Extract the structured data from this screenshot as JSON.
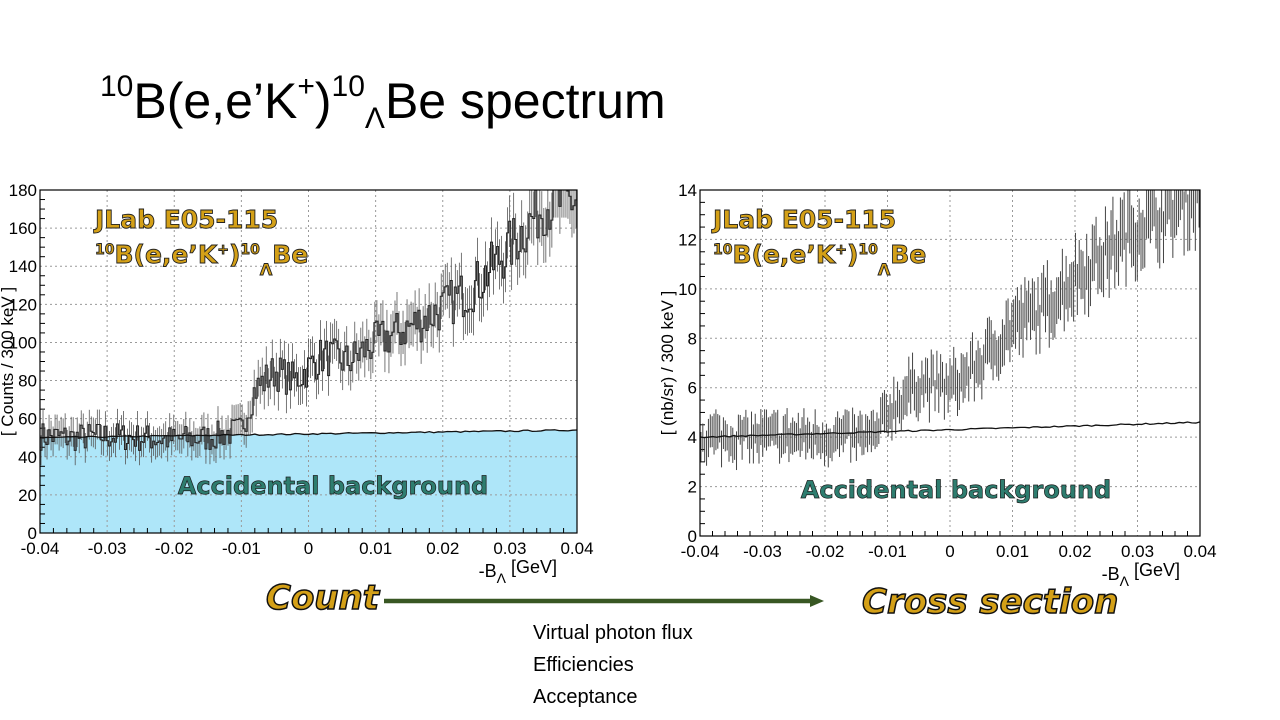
{
  "slide": {
    "title_parts": {
      "a_mass": "10",
      "a_text": "B(e,e’K",
      "plus": "+",
      "close": ")",
      "b_mass": "10",
      "hyper": "Λ",
      "b_text": "Be spectrum"
    },
    "caption_left": "Count",
    "caption_right": "Cross section",
    "notes": [
      "Virtual photon flux",
      "Efficiencies",
      "Acceptance"
    ],
    "arrow_color": "#385723"
  },
  "chart_data": [
    {
      "type": "line",
      "ylabel": "[ Counts / 300 keV ]",
      "xlabel_main": "-B",
      "xlabel_sub": "Λ",
      "xlabel_unit": "[GeV]",
      "xlim": [
        -0.04,
        0.04
      ],
      "ylim": [
        0,
        180
      ],
      "x_ticks": [
        "-0.04",
        "-0.03",
        "-0.02",
        "-0.01",
        "0",
        "0.01",
        "0.02",
        "0.03",
        "0.04"
      ],
      "y_ticks": [
        "0",
        "20",
        "40",
        "60",
        "80",
        "100",
        "120",
        "140",
        "160",
        "180"
      ],
      "grid": true,
      "legend_line1": "JLab E05-115",
      "legend_line2": {
        "mass_a": "10",
        "text_a": "B(e,e’K",
        "plus": "+",
        "text_b": ")",
        "mass_b": "10",
        "hyper": "Λ",
        "text_c": "Be"
      },
      "annotation": "Accidental background",
      "colors": {
        "fill": "#aee6f9",
        "data": "#333333",
        "text": "#d4a017",
        "annotation": "#2e7d6f"
      },
      "series": [
        {
          "kind": "histogram",
          "x_range": [
            -0.04,
            0.04
          ],
          "knots": [
            [
              -0.04,
              51
            ],
            [
              -0.035,
              50
            ],
            [
              -0.03,
              51
            ],
            [
              -0.025,
              50
            ],
            [
              -0.02,
              49
            ],
            [
              -0.015,
              50
            ],
            [
              -0.01,
              54
            ],
            [
              -0.008,
              75
            ],
            [
              -0.005,
              85
            ],
            [
              -0.002,
              80
            ],
            [
              0.002,
              93
            ],
            [
              0.006,
              90
            ],
            [
              0.01,
              100
            ],
            [
              0.015,
              108
            ],
            [
              0.02,
              118
            ],
            [
              0.025,
              130
            ],
            [
              0.03,
              150
            ],
            [
              0.035,
              172
            ],
            [
              0.04,
              175
            ]
          ]
        },
        {
          "kind": "background",
          "x": [
            -0.04,
            0.04
          ],
          "y": [
            50,
            54
          ]
        }
      ]
    },
    {
      "type": "scatter",
      "ylabel": "[ (nb/sr) / 300 keV ]",
      "xlabel_main": "-B",
      "xlabel_sub": "Λ",
      "xlabel_unit": "[GeV]",
      "xlim": [
        -0.04,
        0.04
      ],
      "ylim": [
        0,
        14
      ],
      "x_ticks": [
        "-0.04",
        "-0.03",
        "-0.02",
        "-0.01",
        "0",
        "0.01",
        "0.02",
        "0.03",
        "0.04"
      ],
      "y_ticks": [
        "0",
        "2",
        "4",
        "6",
        "8",
        "10",
        "12",
        "14"
      ],
      "grid": true,
      "legend_line1": "JLab E05-115",
      "legend_line2": {
        "mass_a": "10",
        "text_a": "B(e,e’K",
        "plus": "+",
        "text_b": ")",
        "mass_b": "10",
        "hyper": "Λ",
        "text_c": "Be"
      },
      "annotation": "Accidental background",
      "colors": {
        "fill": "none",
        "data": "#333333",
        "text": "#d4a017",
        "annotation": "#2e7d6f"
      },
      "series": [
        {
          "kind": "errorbars",
          "x_range": [
            -0.04,
            0.04
          ],
          "knots": [
            [
              -0.04,
              4.0
            ],
            [
              -0.03,
              4.0
            ],
            [
              -0.02,
              4.0
            ],
            [
              -0.012,
              4.0
            ],
            [
              -0.01,
              5.0
            ],
            [
              -0.005,
              6.2
            ],
            [
              0.0,
              6.0
            ],
            [
              0.005,
              7.0
            ],
            [
              0.01,
              8.5
            ],
            [
              0.015,
              9.2
            ],
            [
              0.02,
              10.5
            ],
            [
              0.025,
              11.5
            ],
            [
              0.03,
              12.5
            ],
            [
              0.035,
              13.2
            ],
            [
              0.04,
              14.0
            ]
          ]
        },
        {
          "kind": "background",
          "x": [
            -0.04,
            0.04
          ],
          "y": [
            4.0,
            4.6
          ]
        }
      ]
    }
  ]
}
